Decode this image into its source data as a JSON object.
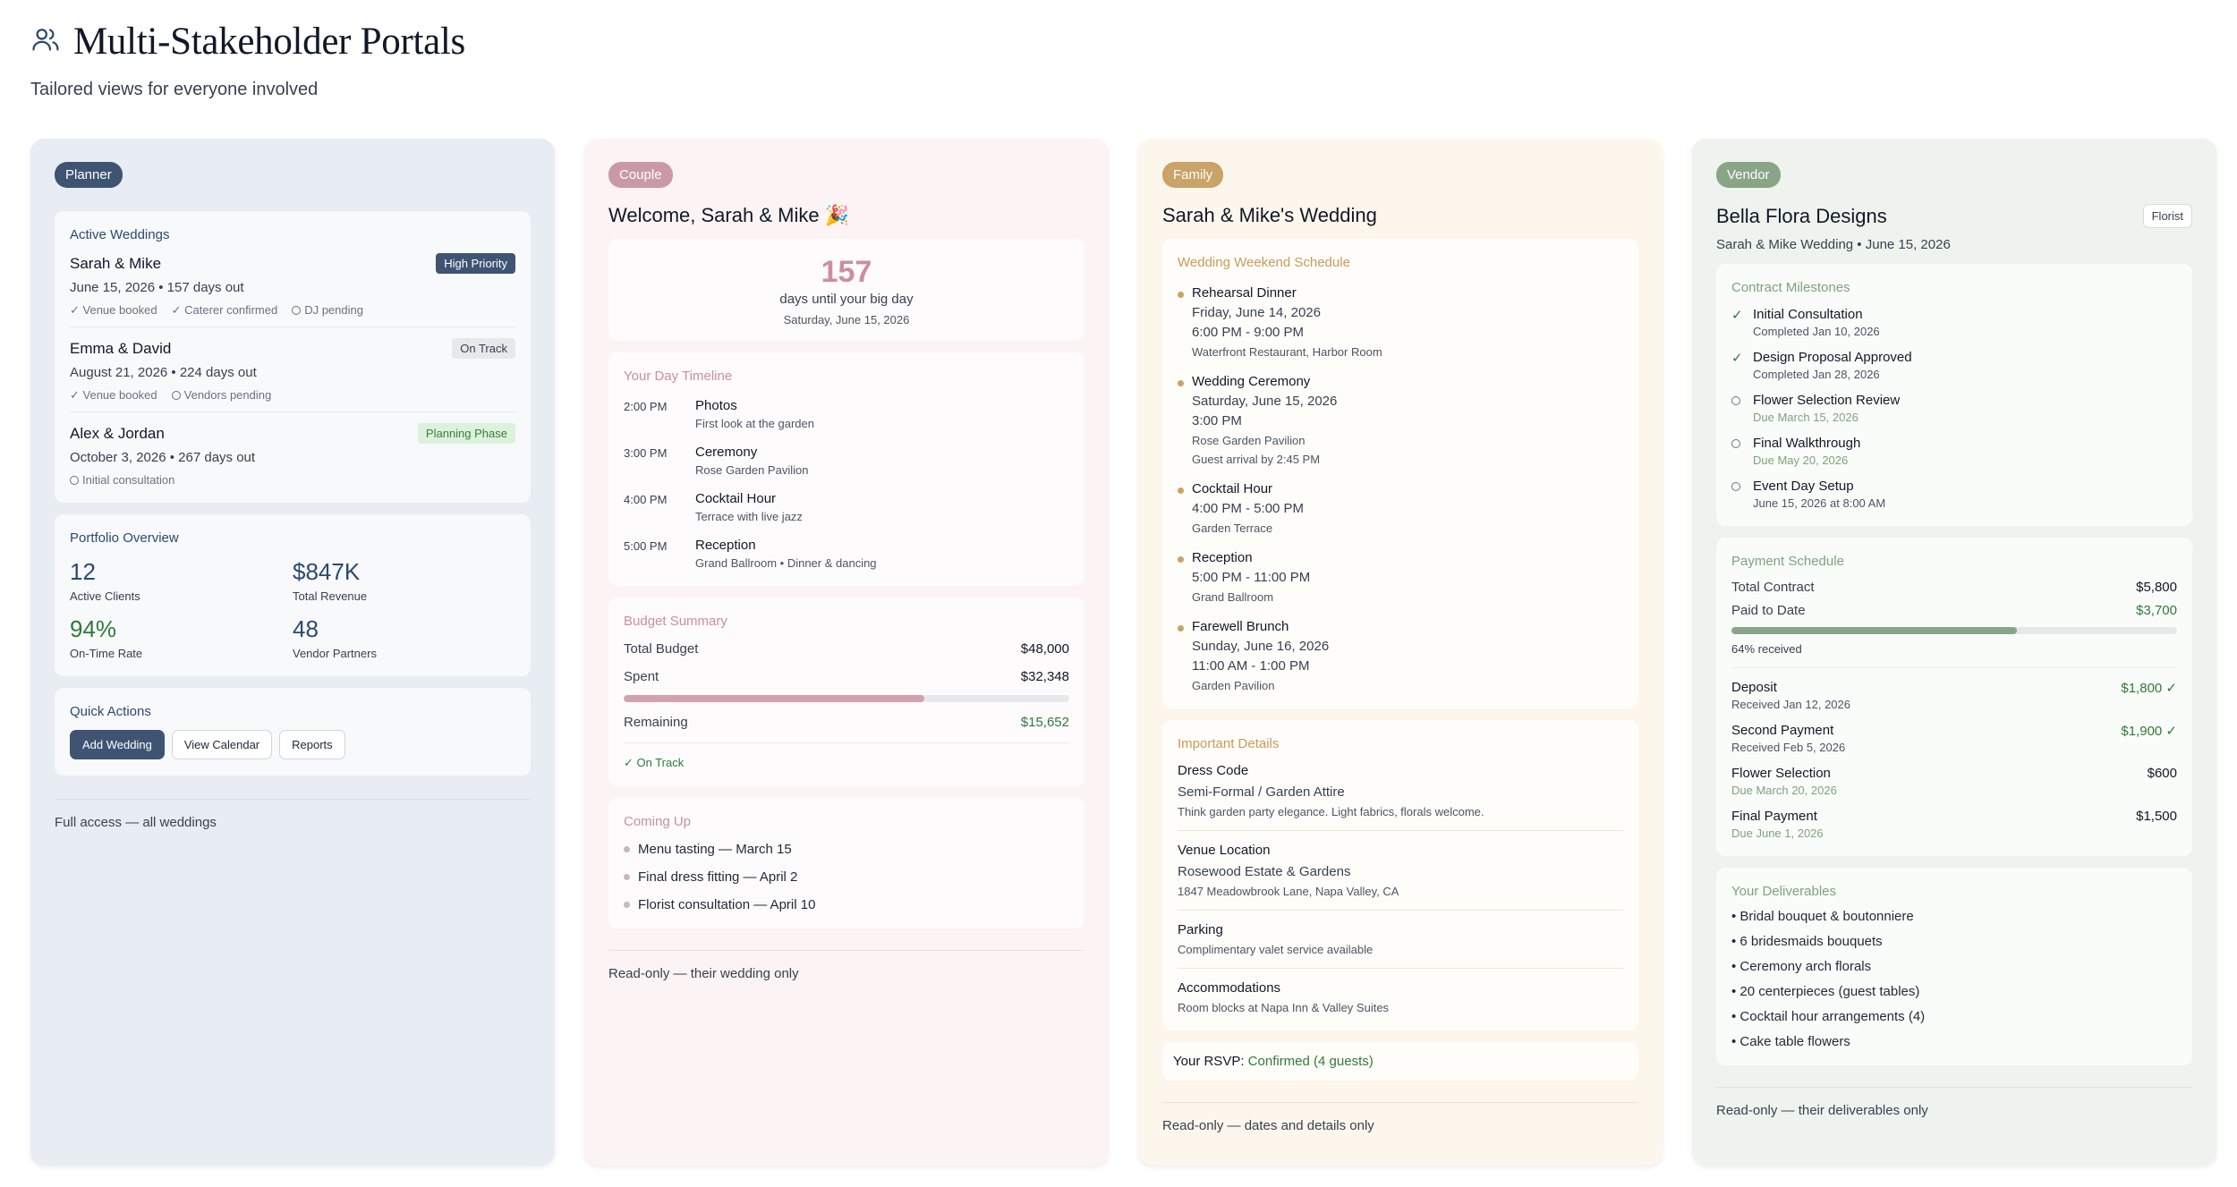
{
  "page": {
    "title": "Multi-Stakeholder Portals",
    "subtitle": "Tailored views for everyone involved",
    "icon": "users-icon"
  },
  "planner": {
    "badge": "Planner",
    "active_title": "Active Weddings",
    "weddings": [
      {
        "name": "Sarah & Mike",
        "status": "High Priority",
        "date": "June 15, 2026 • 157 days out",
        "tags": [
          "✓ Venue booked",
          "✓ Caterer confirmed",
          "DJ pending"
        ]
      },
      {
        "name": "Emma & David",
        "status": "On Track",
        "date": "August 21, 2026 • 224 days out",
        "tags": [
          "✓ Venue booked",
          "Vendors pending"
        ]
      },
      {
        "name": "Alex & Jordan",
        "status": "Planning Phase",
        "date": "October 3, 2026 • 267 days out",
        "tags": [
          "Initial consultation"
        ]
      }
    ],
    "portfolio_title": "Portfolio Overview",
    "stats": [
      {
        "value": "12",
        "label": "Active Clients"
      },
      {
        "value": "$847K",
        "label": "Total Revenue"
      },
      {
        "value": "94%",
        "label": "On-Time Rate"
      },
      {
        "value": "48",
        "label": "Vendor Partners"
      }
    ],
    "quick_title": "Quick Actions",
    "actions": [
      "Add Wedding",
      "View Calendar",
      "Reports"
    ],
    "footer": "Full access — all weddings"
  },
  "couple": {
    "badge": "Couple",
    "heading": "Welcome, Sarah & Mike 🎉",
    "countdown": {
      "number": "157",
      "label": "days until your big day",
      "date": "Saturday, June 15, 2026"
    },
    "timeline_title": "Your Day Timeline",
    "timeline": [
      {
        "time": "2:00 PM",
        "name": "Photos",
        "desc": "First look at the garden"
      },
      {
        "time": "3:00 PM",
        "name": "Ceremony",
        "desc": "Rose Garden Pavilion"
      },
      {
        "time": "4:00 PM",
        "name": "Cocktail Hour",
        "desc": "Terrace with live jazz"
      },
      {
        "time": "5:00 PM",
        "name": "Reception",
        "desc": "Grand Ballroom • Dinner & dancing"
      }
    ],
    "budget_title": "Budget Summary",
    "budget": {
      "total_label": "Total Budget",
      "total": "$48,000",
      "spent_label": "Spent",
      "spent": "$32,348",
      "spent_fraction": 0.674,
      "remaining_label": "Remaining",
      "remaining": "$15,652",
      "status": "✓ On Track"
    },
    "coming_title": "Coming Up",
    "coming": [
      "Menu tasting — March 15",
      "Final dress fitting — April 2",
      "Florist consultation — April 10"
    ],
    "footer": "Read-only — their wedding only"
  },
  "family": {
    "badge": "Family",
    "heading": "Sarah & Mike's Wedding",
    "schedule_title": "Wedding Weekend Schedule",
    "events": [
      {
        "name": "Rehearsal Dinner",
        "lines": [
          "Friday, June 14, 2026",
          "6:00 PM - 9:00 PM"
        ],
        "small": [
          "Waterfront Restaurant, Harbor Room"
        ]
      },
      {
        "name": "Wedding Ceremony",
        "lines": [
          "Saturday, June 15, 2026",
          "3:00 PM"
        ],
        "small": [
          "Rose Garden Pavilion",
          "Guest arrival by 2:45 PM"
        ]
      },
      {
        "name": "Cocktail Hour",
        "lines": [
          "4:00 PM - 5:00 PM"
        ],
        "small": [
          "Garden Terrace"
        ]
      },
      {
        "name": "Reception",
        "lines": [
          "5:00 PM - 11:00 PM"
        ],
        "small": [
          "Grand Ballroom"
        ]
      },
      {
        "name": "Farewell Brunch",
        "lines": [
          "Sunday, June 16, 2026",
          "11:00 AM - 1:00 PM"
        ],
        "small": [
          "Garden Pavilion"
        ]
      }
    ],
    "details_title": "Important Details",
    "details": [
      {
        "label": "Dress Code",
        "value": "Semi-Formal / Garden Attire",
        "small": "Think garden party elegance. Light fabrics, florals welcome."
      },
      {
        "label": "Venue Location",
        "value": "Rosewood Estate & Gardens",
        "small": "1847 Meadowbrook Lane, Napa Valley, CA"
      },
      {
        "label": "Parking",
        "value": "",
        "small": "Complimentary valet service available"
      },
      {
        "label": "Accommodations",
        "value": "",
        "small": "Room blocks at Napa Inn & Valley Suites"
      }
    ],
    "rsvp_label": "Your RSVP:",
    "rsvp_value": "Confirmed (4 guests)",
    "footer": "Read-only — dates and details only"
  },
  "vendor": {
    "badge": "Vendor",
    "heading": "Bella Flora Designs",
    "tag": "Florist",
    "subheading": "Sarah & Mike Wedding • June 15, 2026",
    "milestones_title": "Contract Milestones",
    "milestones": [
      {
        "name": "Initial Consultation",
        "sub": "Completed Jan 10, 2026",
        "done": true
      },
      {
        "name": "Design Proposal Approved",
        "sub": "Completed Jan 28, 2026",
        "done": true
      },
      {
        "name": "Flower Selection Review",
        "sub": "Due March 15, 2026",
        "done": false,
        "due": true
      },
      {
        "name": "Final Walkthrough",
        "sub": "Due May 20, 2026",
        "done": false,
        "due": true
      },
      {
        "name": "Event Day Setup",
        "sub": "June 15, 2026 at 8:00 AM",
        "done": false,
        "due": false
      }
    ],
    "payment_title": "Payment Schedule",
    "payment": {
      "total_label": "Total Contract",
      "total": "$5,800",
      "paid_label": "Paid to Date",
      "paid": "$3,700",
      "received_fraction": 0.64,
      "received_text": "64% received"
    },
    "installments": [
      {
        "name": "Deposit",
        "sub": "Received Jan 12, 2026",
        "amount": "$1,800 ✓",
        "paid": true
      },
      {
        "name": "Second Payment",
        "sub": "Received Feb 5, 2026",
        "amount": "$1,900 ✓",
        "paid": true
      },
      {
        "name": "Flower Selection",
        "sub": "Due March 20, 2026",
        "amount": "$600",
        "paid": false
      },
      {
        "name": "Final Payment",
        "sub": "Due June 1, 2026",
        "amount": "$1,500",
        "paid": false
      }
    ],
    "deliverables_title": "Your Deliverables",
    "deliverables": [
      "• Bridal bouquet & boutonniere",
      "• 6 bridesmaids bouquets",
      "• Ceremony arch florals",
      "• 20 centerpieces (guest tables)",
      "• Cocktail hour arrangements (4)",
      "• Cake table flowers"
    ],
    "footer": "Read-only — their deliverables only"
  }
}
